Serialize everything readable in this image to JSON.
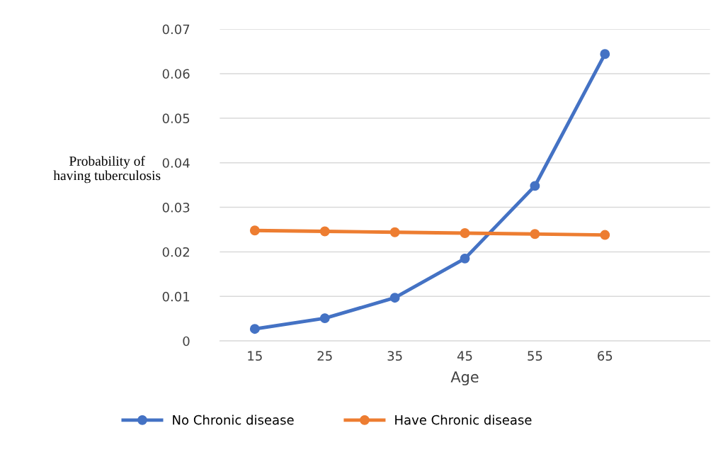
{
  "chart_data": {
    "type": "line",
    "xlabel": "Age",
    "ylabel": "Probability of\nhaving tuberculosis",
    "categories": [
      "15",
      "25",
      "35",
      "45",
      "55",
      "65",
      null
    ],
    "series": [
      {
        "name": "No Chronic disease",
        "color": "#4472c4",
        "values": [
          0.0027,
          0.0051,
          0.0097,
          0.0185,
          0.0348,
          0.0644,
          null
        ]
      },
      {
        "name": "Have Chronic disease",
        "color": "#ed7d31",
        "values": [
          0.0248,
          0.0246,
          0.0244,
          0.0242,
          0.024,
          0.0238,
          null
        ]
      }
    ],
    "ylim": [
      0,
      0.07
    ],
    "yticks": [
      0,
      0.01,
      0.02,
      0.03,
      0.04,
      0.05,
      0.06,
      0.07
    ],
    "grid": "y",
    "legend": "bottom",
    "marker": "circle",
    "line_style": "solid"
  }
}
